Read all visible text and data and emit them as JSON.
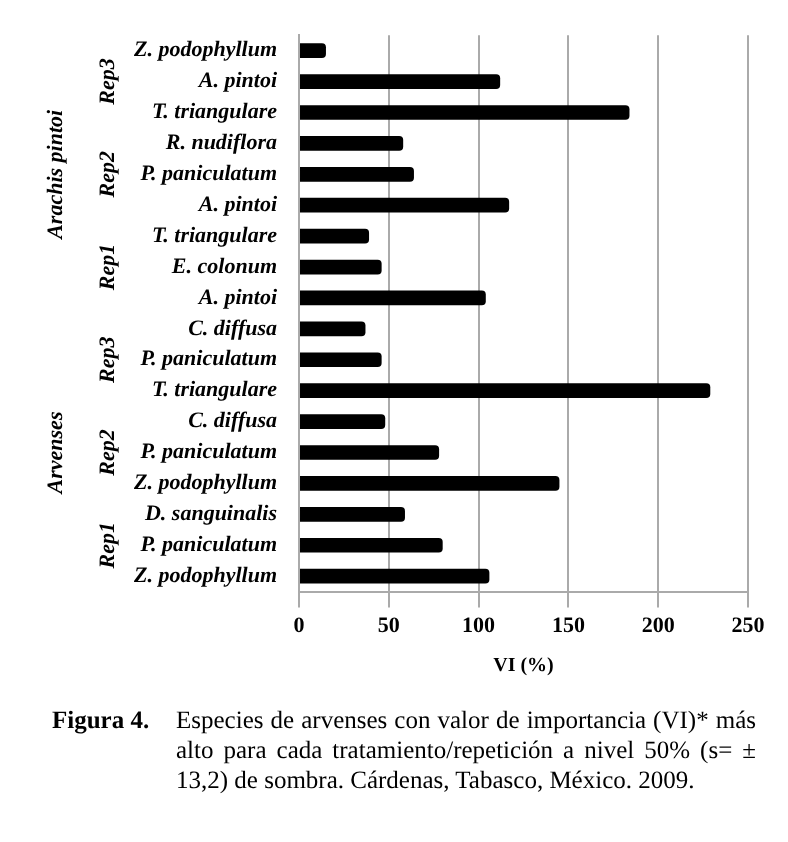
{
  "chart_data": {
    "type": "bar",
    "orientation": "horizontal",
    "categories": [
      "Z. podophyllum",
      "A. pintoi",
      "T. triangulare",
      "R. nudiflora",
      "P. paniculatum",
      "A. pintoi",
      "T. triangulare",
      "E. colonum",
      "A. pintoi",
      "C. diffusa",
      "P. paniculatum",
      "T. triangulare",
      "C. diffusa",
      "P. paniculatum",
      "Z. podophyllum",
      "D. sanguinalis",
      "P. paniculatum",
      "Z. podophyllum"
    ],
    "values": [
      15,
      112,
      184,
      58,
      64,
      117,
      39,
      46,
      104,
      37,
      46,
      229,
      48,
      78,
      145,
      59,
      80,
      106
    ],
    "color": "#000000",
    "xlim": [
      0,
      250
    ],
    "xticks": [
      0,
      50,
      100,
      150,
      200,
      250
    ],
    "xlabel": "VI (%)",
    "grid": "x",
    "legend": false,
    "annotations": [
      "Arachis pintoi",
      "Rep3",
      "Rep2",
      "Rep1",
      "Arvenses",
      "Rep3",
      "Rep2",
      "Rep1",
      "Figura 4.",
      "Especies de arvenses con valor de importancia (VI)* más alto para cada tratamiento/repetición a nivel 50% (s= ± 13,2) de sombra. Cárdenas, Tabasco, México. 2009."
    ]
  }
}
